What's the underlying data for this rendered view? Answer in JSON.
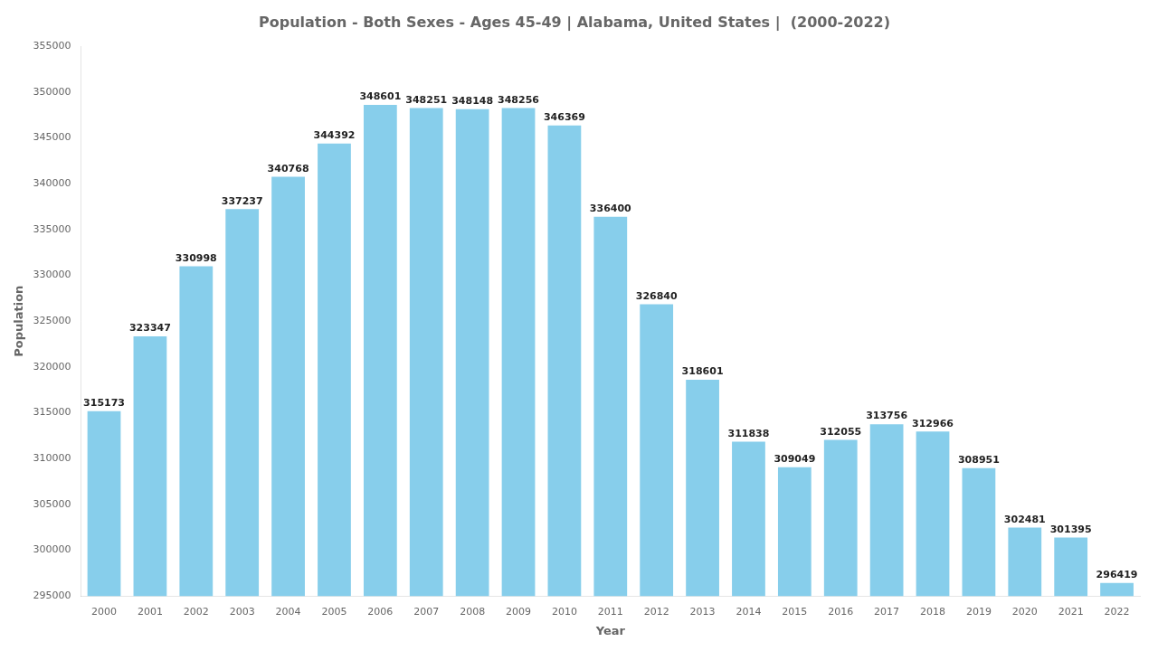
{
  "chart_data": {
    "type": "bar",
    "title": "Population - Both Sexes - Ages 45-49 | Alabama, United States |  (2000-2022)",
    "xlabel": "Year",
    "ylabel": "Population",
    "categories": [
      "2000",
      "2001",
      "2002",
      "2003",
      "2004",
      "2005",
      "2006",
      "2007",
      "2008",
      "2009",
      "2010",
      "2011",
      "2012",
      "2013",
      "2014",
      "2015",
      "2016",
      "2017",
      "2018",
      "2019",
      "2020",
      "2021",
      "2022"
    ],
    "values": [
      315173,
      323347,
      330998,
      337237,
      340768,
      344392,
      348601,
      348251,
      348148,
      348256,
      346369,
      336400,
      326840,
      318601,
      311838,
      309049,
      312055,
      313756,
      312966,
      308951,
      302481,
      301395,
      296419
    ],
    "color": "#87CEEB",
    "ylim": [
      295000,
      355000
    ],
    "yticks": [
      295000,
      300000,
      305000,
      310000,
      315000,
      320000,
      325000,
      330000,
      335000,
      340000,
      345000,
      350000,
      355000
    ],
    "grid": false,
    "data_labels": true
  }
}
